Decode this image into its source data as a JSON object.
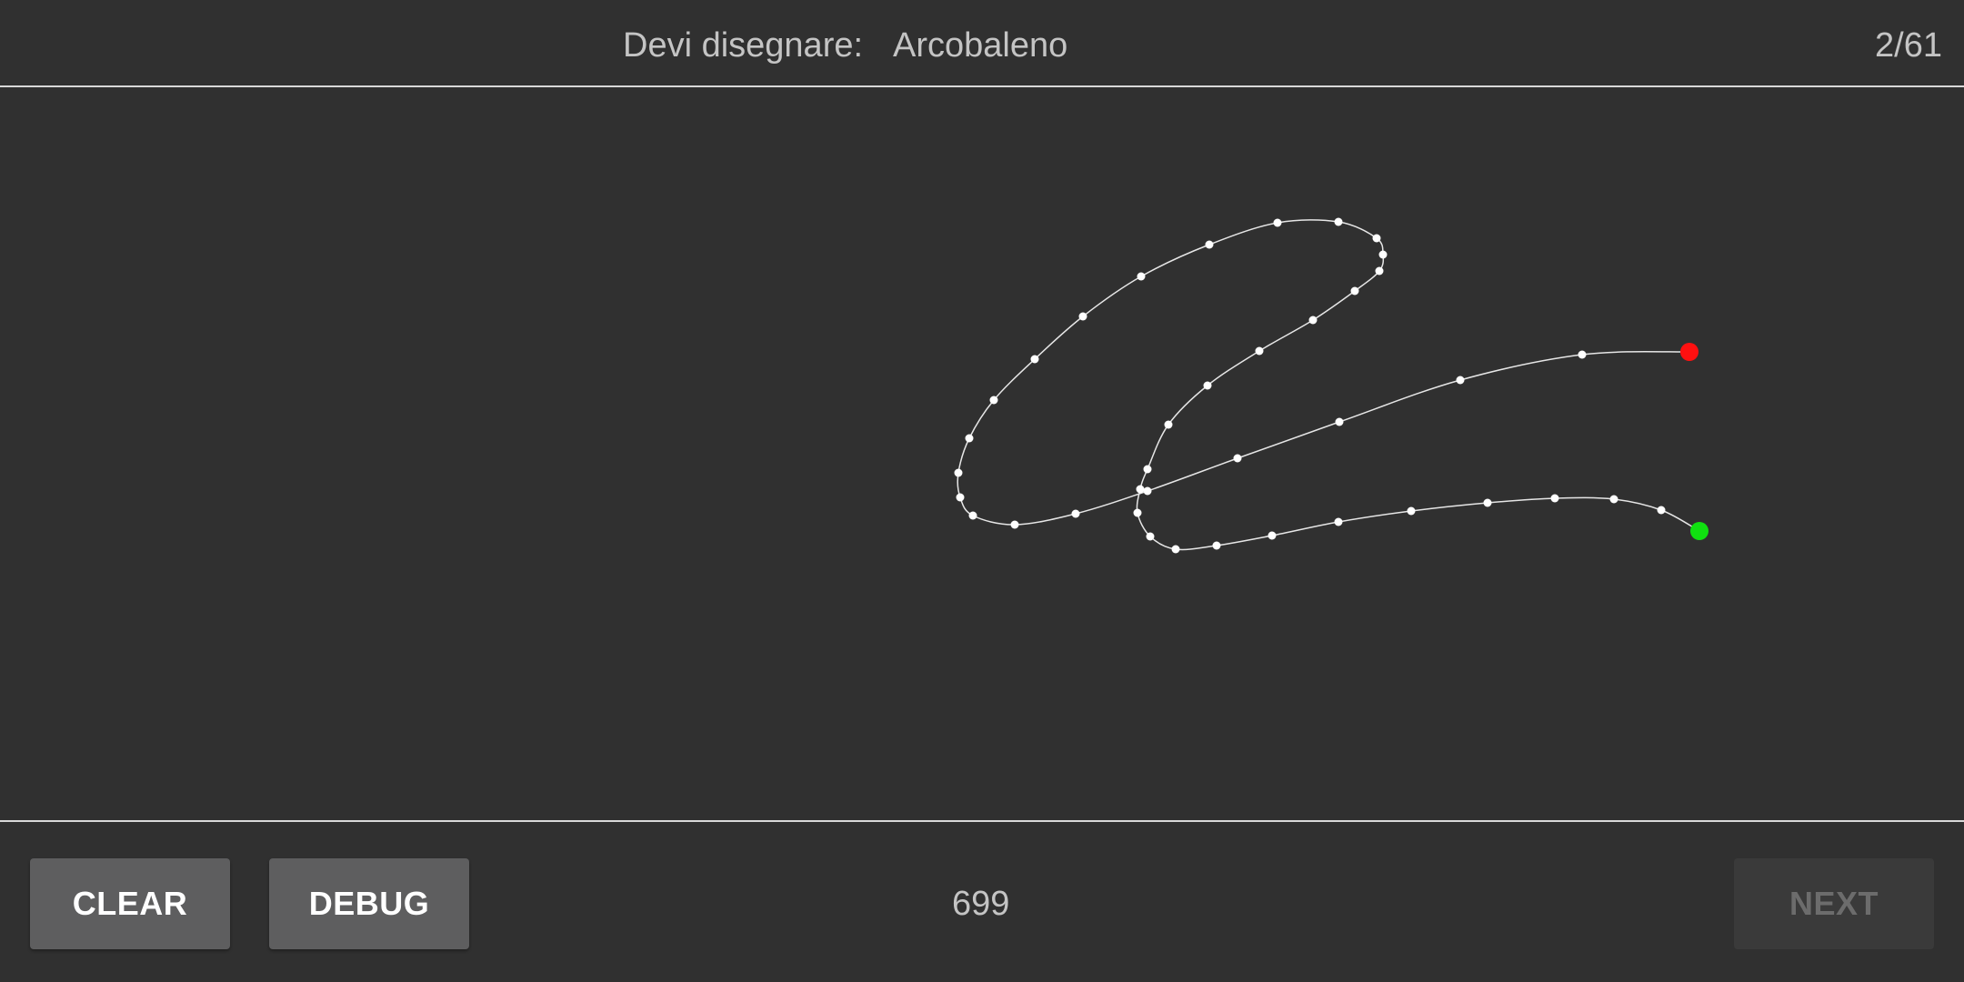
{
  "header": {
    "prompt_label": "Devi disegnare:",
    "prompt_word": "Arcobaleno",
    "counter": "2/61"
  },
  "footer": {
    "clear_label": "CLEAR",
    "debug_label": "DEBUG",
    "score": "699",
    "next_label": "NEXT",
    "next_enabled": false
  },
  "drawing": {
    "stroke_color": "#e6e6e6",
    "point_color": "#ffffff",
    "start_marker_color": "#10e010",
    "end_marker_color": "#ff1010"
  }
}
